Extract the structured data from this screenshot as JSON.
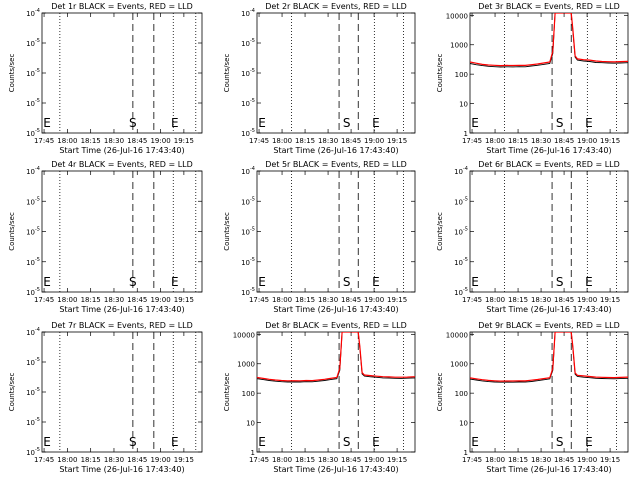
{
  "chart_data": [
    {
      "type": "line",
      "title": "Det 1r BLACK = Events, RED = LLD",
      "xlabel": "Start Time (26-Jul-16 17:43:40)",
      "ylabel": "Counts/sec",
      "x_tick_labels": [
        "17:45",
        "18:00",
        "18:15",
        "18:30",
        "18:45",
        "19:00",
        "19:15"
      ],
      "x_tick_minutes": [
        1.33,
        16.33,
        31.33,
        46.33,
        61.33,
        76.33,
        91.33
      ],
      "xlim_minutes": [
        0,
        103
      ],
      "y_scale": "log",
      "ylim": [
        1e-05,
        0.0001
      ],
      "y_tick_labels": [
        "10^-5",
        "10^-5",
        "10^-5",
        "10^-5",
        "10^-4"
      ],
      "markers": [
        {
          "label": "E",
          "minute": 0.7
        },
        {
          "label": "S",
          "minute": 58.5
        },
        {
          "label": "E",
          "minute": 85.5
        }
      ],
      "vlines_dashed_minutes": [
        58.5,
        72.0
      ],
      "vlines_dotted_minutes": [
        11.5,
        84.5,
        99.0
      ],
      "series": []
    },
    {
      "type": "line",
      "title": "Det 2r BLACK = Events, RED = LLD",
      "xlabel": "Start Time (26-Jul-16 17:43:40)",
      "ylabel": "Counts/sec",
      "x_tick_labels": [
        "17:45",
        "18:00",
        "18:15",
        "18:30",
        "18:45",
        "19:00",
        "19:15"
      ],
      "x_tick_minutes": [
        1.33,
        16.33,
        31.33,
        46.33,
        61.33,
        76.33,
        91.33
      ],
      "xlim_minutes": [
        0,
        103
      ],
      "y_scale": "log",
      "ylim": [
        1e-05,
        0.0001
      ],
      "y_tick_labels": [
        "10^-5",
        "10^-5",
        "10^-5",
        "10^-5",
        "10^-4"
      ],
      "markers": [
        {
          "label": "E",
          "minute": 0.7
        },
        {
          "label": "S",
          "minute": 58.5
        },
        {
          "label": "E",
          "minute": 77.5
        }
      ],
      "vlines_dashed_minutes": [
        53.5,
        66.0
      ],
      "vlines_dotted_minutes": [
        22.5,
        76.5,
        95.5
      ],
      "series": []
    },
    {
      "type": "line",
      "title": "Det 3r BLACK = Events, RED = LLD",
      "xlabel": "Start Time (26-Jul-16 17:43:40)",
      "ylabel": "Counts/sec",
      "x_tick_labels": [
        "17:45",
        "18:00",
        "18:15",
        "18:30",
        "18:45",
        "19:00",
        "19:15"
      ],
      "x_tick_minutes": [
        1.33,
        16.33,
        31.33,
        46.33,
        61.33,
        76.33,
        91.33
      ],
      "xlim_minutes": [
        0,
        103
      ],
      "y_scale": "log",
      "ylim": [
        1,
        12000
      ],
      "y_tick_labels": [
        "1",
        "10",
        "100",
        "1000",
        "10000"
      ],
      "markers": [
        {
          "label": "E",
          "minute": 0.7
        },
        {
          "label": "S",
          "minute": 58.5
        },
        {
          "label": "E",
          "minute": 77.5
        }
      ],
      "vlines_dashed_minutes": [
        53.5,
        66.0
      ],
      "vlines_dotted_minutes": [
        22.5,
        76.5,
        95.5
      ],
      "series": [
        {
          "name": "Events",
          "color": "#000000",
          "x": [
            0,
            4,
            8,
            12,
            16,
            20,
            24,
            28,
            32,
            36,
            40,
            44,
            48,
            52,
            54,
            55.5,
            57,
            59,
            62,
            64,
            66,
            67,
            68.5,
            70,
            74,
            78,
            82,
            86,
            90,
            94,
            98,
            103
          ],
          "y": [
            230,
            210,
            195,
            185,
            180,
            175,
            178,
            176,
            180,
            178,
            190,
            200,
            215,
            230,
            500,
            12000,
            12000,
            12000,
            12000,
            12000,
            12000,
            3000,
            380,
            300,
            280,
            270,
            250,
            245,
            240,
            235,
            240,
            245
          ]
        },
        {
          "name": "LLD",
          "color": "#ff0000",
          "x": [
            0,
            4,
            8,
            12,
            16,
            20,
            24,
            28,
            32,
            36,
            40,
            44,
            48,
            52,
            54,
            55.5,
            57,
            59,
            62,
            64,
            66,
            67,
            68.5,
            70,
            74,
            78,
            82,
            86,
            90,
            94,
            98,
            103
          ],
          "y": [
            260,
            235,
            215,
            205,
            200,
            196,
            198,
            197,
            200,
            198,
            210,
            222,
            240,
            260,
            600,
            12000,
            12000,
            12000,
            12000,
            12000,
            12000,
            3500,
            420,
            330,
            310,
            300,
            280,
            270,
            265,
            262,
            268,
            272
          ]
        }
      ]
    },
    {
      "type": "line",
      "title": "Det 4r BLACK = Events, RED = LLD",
      "xlabel": "Start Time (26-Jul-16 17:43:40)",
      "ylabel": "Counts/sec",
      "x_tick_labels": [
        "17:45",
        "18:00",
        "18:15",
        "18:30",
        "18:45",
        "19:00",
        "19:15"
      ],
      "x_tick_minutes": [
        1.33,
        16.33,
        31.33,
        46.33,
        61.33,
        76.33,
        91.33
      ],
      "xlim_minutes": [
        0,
        103
      ],
      "y_scale": "log",
      "ylim": [
        1e-05,
        0.0001
      ],
      "y_tick_labels": [
        "10^-5",
        "10^-5",
        "10^-5",
        "10^-5",
        "10^-4"
      ],
      "markers": [
        {
          "label": "E",
          "minute": 0.7
        },
        {
          "label": "S",
          "minute": 58.5
        },
        {
          "label": "E",
          "minute": 85.5
        }
      ],
      "vlines_dashed_minutes": [
        58.5,
        72.0
      ],
      "vlines_dotted_minutes": [
        11.5,
        84.5,
        99.0
      ],
      "series": []
    },
    {
      "type": "line",
      "title": "Det 5r BLACK = Events, RED = LLD",
      "xlabel": "Start Time (26-Jul-16 17:43:40)",
      "ylabel": "Counts/sec",
      "x_tick_labels": [
        "17:45",
        "18:00",
        "18:15",
        "18:30",
        "18:45",
        "19:00",
        "19:15"
      ],
      "x_tick_minutes": [
        1.33,
        16.33,
        31.33,
        46.33,
        61.33,
        76.33,
        91.33
      ],
      "xlim_minutes": [
        0,
        103
      ],
      "y_scale": "log",
      "ylim": [
        1e-05,
        0.0001
      ],
      "y_tick_labels": [
        "10^-5",
        "10^-5",
        "10^-5",
        "10^-5",
        "10^-4"
      ],
      "markers": [
        {
          "label": "E",
          "minute": 0.7
        },
        {
          "label": "S",
          "minute": 58.5
        },
        {
          "label": "E",
          "minute": 77.5
        }
      ],
      "vlines_dashed_minutes": [
        53.5,
        66.0
      ],
      "vlines_dotted_minutes": [
        22.5,
        76.5,
        95.5
      ],
      "series": []
    },
    {
      "type": "line",
      "title": "Det 6r BLACK = Events, RED = LLD",
      "xlabel": "Start Time (26-Jul-16 17:43:40)",
      "ylabel": "Counts/sec",
      "x_tick_labels": [
        "17:45",
        "18:00",
        "18:15",
        "18:30",
        "18:45",
        "19:00",
        "19:15"
      ],
      "x_tick_minutes": [
        1.33,
        16.33,
        31.33,
        46.33,
        61.33,
        76.33,
        91.33
      ],
      "xlim_minutes": [
        0,
        103
      ],
      "y_scale": "log",
      "ylim": [
        1e-05,
        0.0001
      ],
      "y_tick_labels": [
        "10^-5",
        "10^-5",
        "10^-5",
        "10^-5",
        "10^-4"
      ],
      "markers": [
        {
          "label": "E",
          "minute": 0.7
        },
        {
          "label": "S",
          "minute": 58.5
        },
        {
          "label": "E",
          "minute": 77.5
        }
      ],
      "vlines_dashed_minutes": [
        53.5,
        66.0
      ],
      "vlines_dotted_minutes": [
        22.5,
        76.5,
        95.5
      ],
      "series": []
    },
    {
      "type": "line",
      "title": "Det 7r BLACK = Events, RED = LLD",
      "xlabel": "Start Time (26-Jul-16 17:43:40)",
      "ylabel": "Counts/sec",
      "x_tick_labels": [
        "17:45",
        "18:00",
        "18:15",
        "18:30",
        "18:45",
        "19:00",
        "19:15"
      ],
      "x_tick_minutes": [
        1.33,
        16.33,
        31.33,
        46.33,
        61.33,
        76.33,
        91.33
      ],
      "xlim_minutes": [
        0,
        103
      ],
      "y_scale": "log",
      "ylim": [
        1e-05,
        0.0001
      ],
      "y_tick_labels": [
        "10^-5",
        "10^-5",
        "10^-5",
        "10^-5",
        "10^-4"
      ],
      "markers": [
        {
          "label": "E",
          "minute": 0.7
        },
        {
          "label": "S",
          "minute": 58.5
        },
        {
          "label": "E",
          "minute": 85.5
        }
      ],
      "vlines_dashed_minutes": [
        58.5,
        72.0
      ],
      "vlines_dotted_minutes": [
        11.5,
        84.5,
        99.0
      ],
      "series": []
    },
    {
      "type": "line",
      "title": "Det 8r BLACK = Events, RED = LLD",
      "xlabel": "Start Time (26-Jul-16 17:43:40)",
      "ylabel": "Counts/sec",
      "x_tick_labels": [
        "17:45",
        "18:00",
        "18:15",
        "18:30",
        "18:45",
        "19:00",
        "19:15"
      ],
      "x_tick_minutes": [
        1.33,
        16.33,
        31.33,
        46.33,
        61.33,
        76.33,
        91.33
      ],
      "xlim_minutes": [
        0,
        103
      ],
      "y_scale": "log",
      "ylim": [
        1,
        12000
      ],
      "y_tick_labels": [
        "1",
        "10",
        "100",
        "1000",
        "10000"
      ],
      "markers": [
        {
          "label": "E",
          "minute": 0.7
        },
        {
          "label": "S",
          "minute": 58.5
        },
        {
          "label": "E",
          "minute": 77.5
        }
      ],
      "vlines_dashed_minutes": [
        53.5,
        66.0
      ],
      "vlines_dotted_minutes": [
        22.5,
        76.5,
        95.5
      ],
      "series": [
        {
          "name": "Events",
          "color": "#000000",
          "x": [
            0,
            4,
            8,
            12,
            16,
            20,
            24,
            28,
            32,
            36,
            40,
            44,
            48,
            52,
            54,
            55.5,
            57,
            59,
            62,
            64,
            66,
            67,
            68.5,
            70,
            74,
            78,
            82,
            86,
            90,
            94,
            98,
            103
          ],
          "y": [
            310,
            290,
            270,
            255,
            245,
            240,
            242,
            240,
            245,
            243,
            255,
            270,
            290,
            310,
            600,
            12000,
            12000,
            12000,
            12000,
            12000,
            12000,
            3500,
            450,
            380,
            360,
            345,
            330,
            325,
            320,
            318,
            322,
            330
          ]
        },
        {
          "name": "LLD",
          "color": "#ff0000",
          "x": [
            0,
            4,
            8,
            12,
            16,
            20,
            24,
            28,
            32,
            36,
            40,
            44,
            48,
            52,
            54,
            55.5,
            57,
            59,
            62,
            64,
            66,
            67,
            68.5,
            70,
            74,
            78,
            82,
            86,
            90,
            94,
            98,
            103
          ],
          "y": [
            340,
            318,
            296,
            280,
            270,
            264,
            266,
            264,
            270,
            268,
            280,
            296,
            318,
            340,
            700,
            12000,
            12000,
            12000,
            12000,
            12000,
            12000,
            4000,
            500,
            415,
            395,
            378,
            362,
            356,
            350,
            348,
            353,
            362
          ]
        }
      ]
    },
    {
      "type": "line",
      "title": "Det 9r BLACK = Events, RED = LLD",
      "xlabel": "Start Time (26-Jul-16 17:43:40)",
      "ylabel": "Counts/sec",
      "x_tick_labels": [
        "17:45",
        "18:00",
        "18:15",
        "18:30",
        "18:45",
        "19:00",
        "19:15"
      ],
      "x_tick_minutes": [
        1.33,
        16.33,
        31.33,
        46.33,
        61.33,
        76.33,
        91.33
      ],
      "xlim_minutes": [
        0,
        103
      ],
      "y_scale": "log",
      "ylim": [
        1,
        12000
      ],
      "y_tick_labels": [
        "1",
        "10",
        "100",
        "1000",
        "10000"
      ],
      "markers": [
        {
          "label": "E",
          "minute": 0.7
        },
        {
          "label": "S",
          "minute": 58.5
        },
        {
          "label": "E",
          "minute": 77.5
        }
      ],
      "vlines_dashed_minutes": [
        53.5,
        66.0
      ],
      "vlines_dotted_minutes": [
        22.5,
        76.5,
        95.5
      ],
      "series": [
        {
          "name": "Events",
          "color": "#000000",
          "x": [
            0,
            4,
            8,
            12,
            16,
            20,
            24,
            28,
            32,
            36,
            40,
            44,
            48,
            52,
            54,
            55.5,
            57,
            59,
            62,
            64,
            66,
            67,
            68.5,
            70,
            74,
            78,
            82,
            86,
            90,
            94,
            98,
            103
          ],
          "y": [
            300,
            280,
            262,
            248,
            240,
            235,
            237,
            236,
            240,
            238,
            250,
            265,
            285,
            305,
            600,
            12000,
            12000,
            12000,
            12000,
            12000,
            12000,
            3500,
            440,
            370,
            350,
            335,
            320,
            315,
            310,
            308,
            312,
            320
          ]
        },
        {
          "name": "LLD",
          "color": "#ff0000",
          "x": [
            0,
            4,
            8,
            12,
            16,
            20,
            24,
            28,
            32,
            36,
            40,
            44,
            48,
            52,
            54,
            55.5,
            57,
            59,
            62,
            64,
            66,
            67,
            68.5,
            70,
            74,
            78,
            82,
            86,
            90,
            94,
            98,
            103
          ],
          "y": [
            330,
            308,
            288,
            272,
            263,
            258,
            260,
            259,
            263,
            261,
            275,
            291,
            313,
            335,
            700,
            12000,
            12000,
            12000,
            12000,
            12000,
            12000,
            4000,
            490,
            405,
            385,
            368,
            352,
            346,
            341,
            339,
            343,
            352
          ]
        }
      ]
    }
  ]
}
